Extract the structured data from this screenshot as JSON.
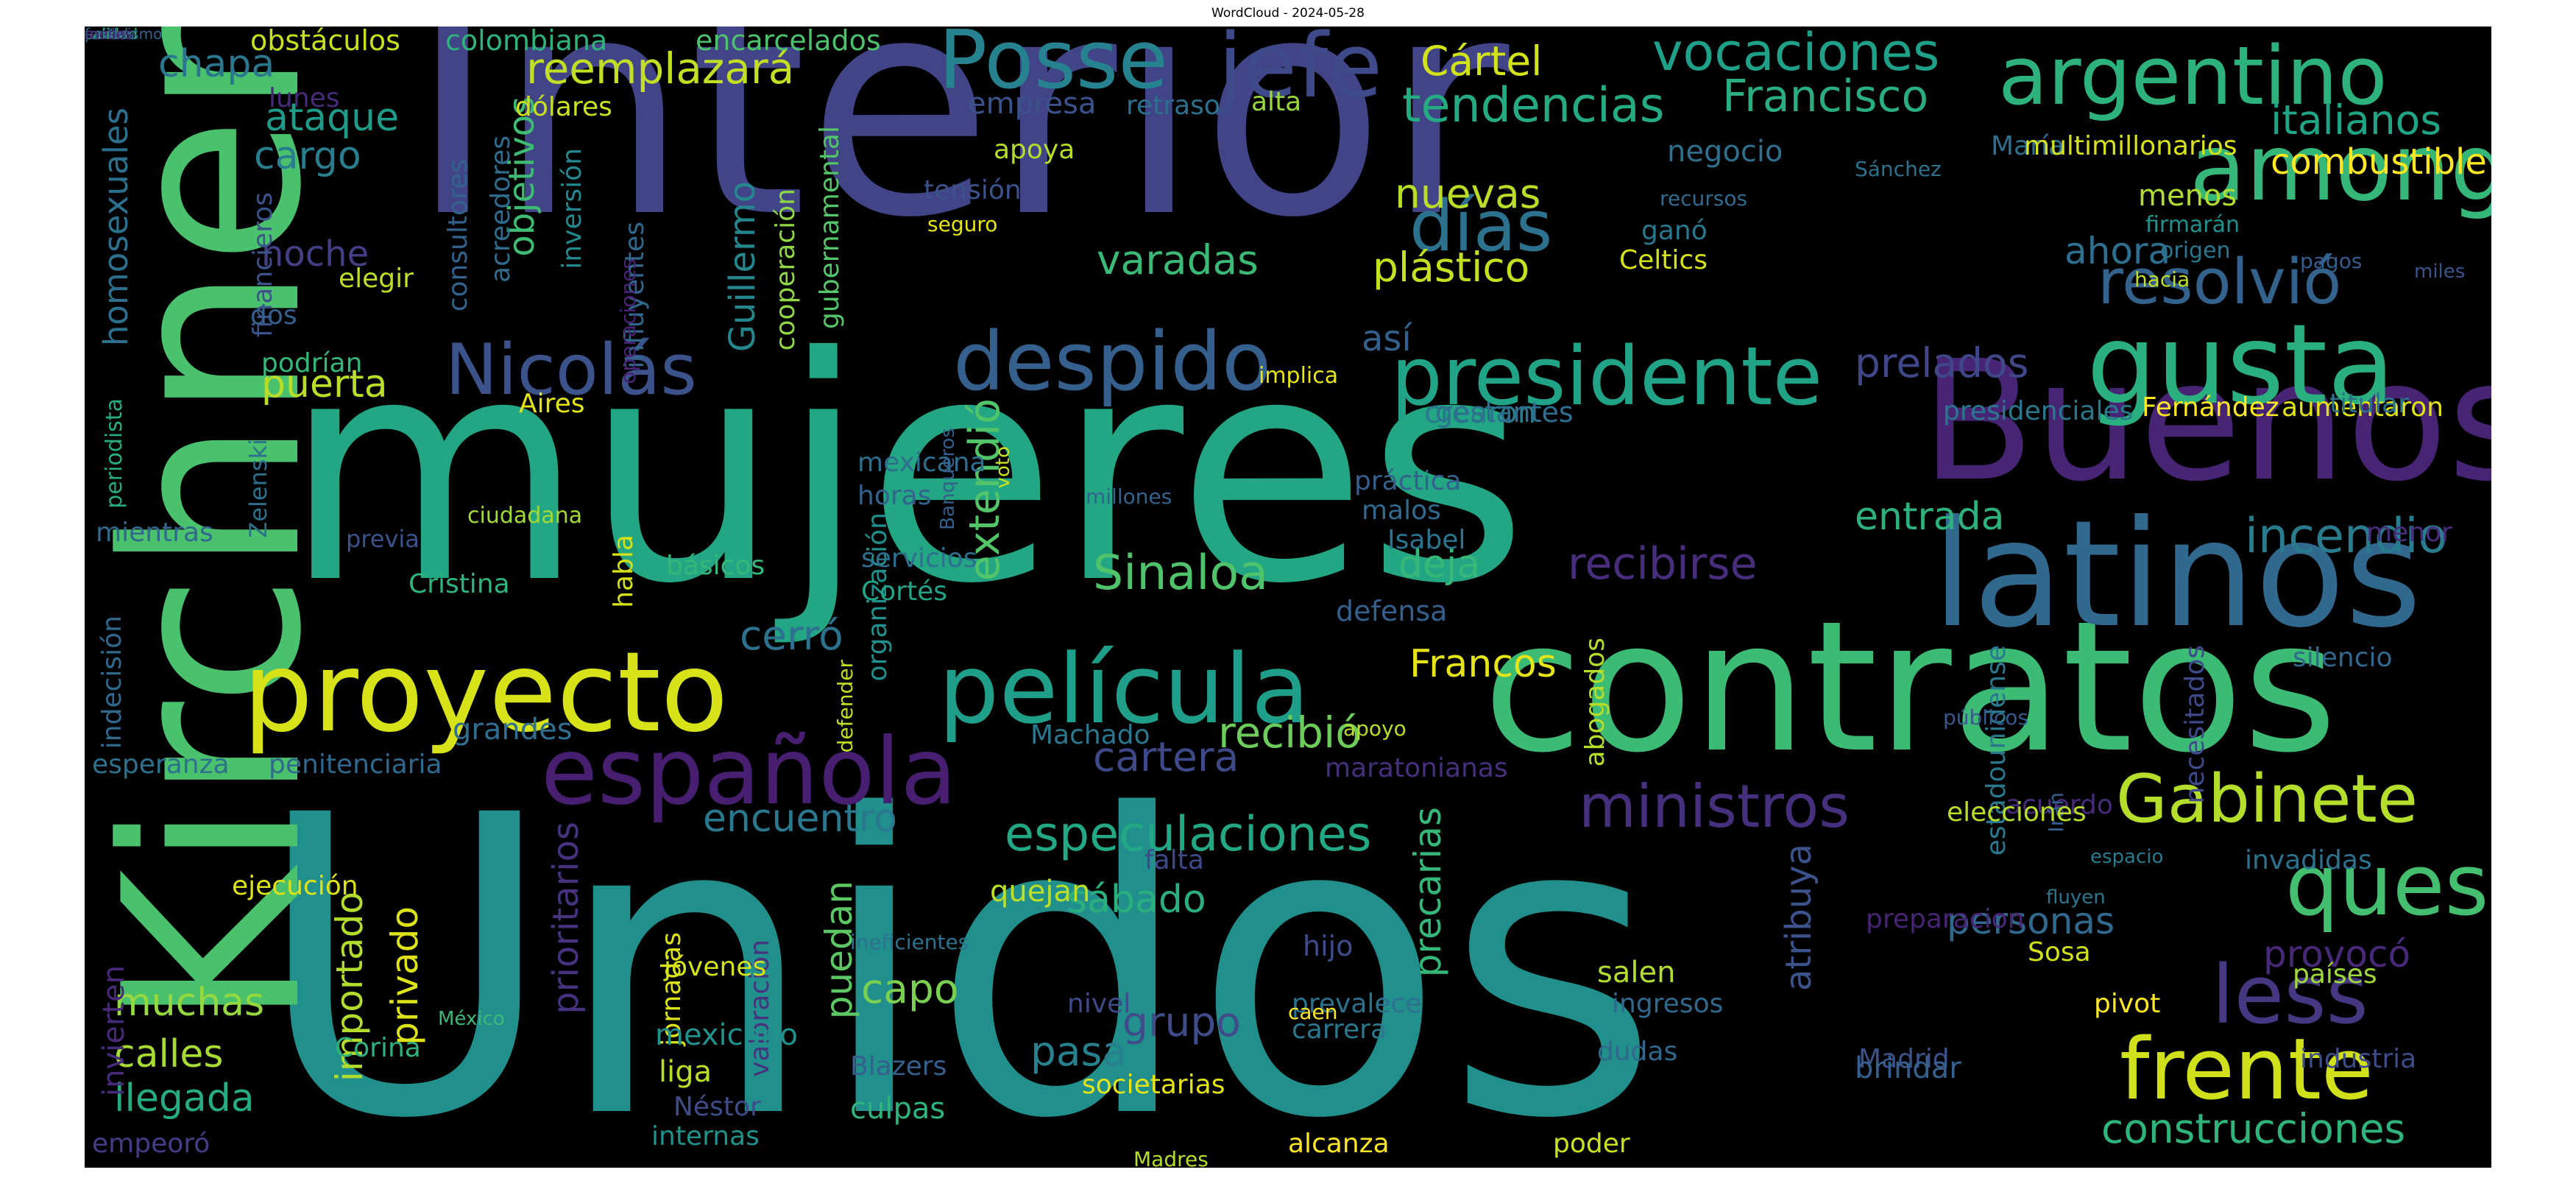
{
  "window": {
    "title": "WordCloud - 2024-05-28"
  },
  "wordcloud": {
    "background": "#000000",
    "words": [
      {
        "text": "Unidos",
        "color": "#218f8c",
        "vertical": false
      },
      {
        "text": "mujeres",
        "color": "#22a684",
        "vertical": false
      },
      {
        "text": "Interior",
        "color": "#414487",
        "vertical": false
      },
      {
        "text": "Kirchner",
        "color": "#4ac16d",
        "vertical": true
      },
      {
        "text": "contratos",
        "color": "#3cbb75",
        "vertical": false
      },
      {
        "text": "Buenos",
        "color": "#482475",
        "vertical": false
      },
      {
        "text": "latinos",
        "color": "#31688e",
        "vertical": false
      },
      {
        "text": "proyecto",
        "color": "#d8e219",
        "vertical": false
      },
      {
        "text": "película",
        "color": "#1f9e89",
        "vertical": false
      },
      {
        "text": "española",
        "color": "#481f70",
        "vertical": false
      },
      {
        "text": "despido",
        "color": "#355f8d",
        "vertical": false
      },
      {
        "text": "presidente",
        "color": "#20a386",
        "vertical": false
      },
      {
        "text": "gusta",
        "color": "#2ab07f",
        "vertical": false
      },
      {
        "text": "among",
        "color": "#35b779",
        "vertical": false
      },
      {
        "text": "argentino",
        "color": "#2db27d",
        "vertical": false
      },
      {
        "text": "jefe",
        "color": "#3e4a89",
        "vertical": false
      },
      {
        "text": "Posse",
        "color": "#26828e",
        "vertical": false
      },
      {
        "text": "queso",
        "color": "#44bf70",
        "vertical": false
      },
      {
        "text": "frente",
        "color": "#d0e11c",
        "vertical": false
      },
      {
        "text": "less",
        "color": "#453781",
        "vertical": false
      },
      {
        "text": "Gabinete",
        "color": "#b5de2b",
        "vertical": false
      },
      {
        "text": "ministros",
        "color": "#46307e",
        "vertical": false
      },
      {
        "text": "Nicolás",
        "color": "#3b528b",
        "vertical": false
      },
      {
        "text": "días",
        "color": "#2c728e",
        "vertical": false
      },
      {
        "text": "resolvió",
        "color": "#33638d",
        "vertical": false
      },
      {
        "text": "incendio",
        "color": "#297b8e",
        "vertical": false
      },
      {
        "text": "recibirse",
        "color": "#472d7b",
        "vertical": false
      },
      {
        "text": "Sinaloa",
        "color": "#4ec36b",
        "vertical": false
      },
      {
        "text": "extendió",
        "color": "#52c569",
        "vertical": true
      },
      {
        "text": "especulaciones",
        "color": "#22a884",
        "vertical": false
      },
      {
        "text": "vocaciones",
        "color": "#1fa088",
        "vertical": false
      },
      {
        "text": "tendencias",
        "color": "#25ab82",
        "vertical": false
      },
      {
        "text": "Francisco",
        "color": "#28ae80",
        "vertical": false
      },
      {
        "text": "Cártel",
        "color": "#d2e21b",
        "vertical": false
      },
      {
        "text": "reemplazará",
        "color": "#c2df23",
        "vertical": false
      },
      {
        "text": "ataque",
        "color": "#1e9c89",
        "vertical": false
      },
      {
        "text": "cargo",
        "color": "#287d8e",
        "vertical": false
      },
      {
        "text": "chapa",
        "color": "#2a768e",
        "vertical": false
      },
      {
        "text": "puerta",
        "color": "#b8de29",
        "vertical": false
      },
      {
        "text": "prelados",
        "color": "#3f4788",
        "vertical": false
      },
      {
        "text": "italianos",
        "color": "#20a486",
        "vertical": false
      },
      {
        "text": "combustible",
        "color": "#fde725",
        "vertical": false
      },
      {
        "text": "ahora",
        "color": "#2e6e8e",
        "vertical": false
      },
      {
        "text": "varadas",
        "color": "#3aba76",
        "vertical": false
      },
      {
        "text": "plástico",
        "color": "#c5e021",
        "vertical": false
      },
      {
        "text": "nuevas",
        "color": "#bade28",
        "vertical": false
      },
      {
        "text": "entrada",
        "color": "#2db27d",
        "vertical": false
      },
      {
        "text": "deja",
        "color": "#37b878",
        "vertical": false
      },
      {
        "text": "Francos",
        "color": "#e5e419",
        "vertical": false
      },
      {
        "text": "cerró",
        "color": "#2c728e",
        "vertical": false
      },
      {
        "text": "encuentro",
        "color": "#2a788e",
        "vertical": false
      },
      {
        "text": "cartera",
        "color": "#3e4989",
        "vertical": false
      },
      {
        "text": "recibió",
        "color": "#6ccd5a",
        "vertical": false
      },
      {
        "text": "sábado",
        "color": "#2ab07f",
        "vertical": false
      },
      {
        "text": "personas",
        "color": "#31688e",
        "vertical": false
      },
      {
        "text": "provocó",
        "color": "#482878",
        "vertical": false
      },
      {
        "text": "construcciones",
        "color": "#2fb47c",
        "vertical": false
      },
      {
        "text": "muchas",
        "color": "#95d840",
        "vertical": false
      },
      {
        "text": "calles",
        "color": "#a8db34",
        "vertical": false
      },
      {
        "text": "llegada",
        "color": "#25ac82",
        "vertical": false
      },
      {
        "text": "privado",
        "color": "#dde318",
        "vertical": true
      },
      {
        "text": "importado",
        "color": "#b2dd2d",
        "vertical": true
      },
      {
        "text": "capo",
        "color": "#7ad151",
        "vertical": false
      },
      {
        "text": "pasa",
        "color": "#27808e",
        "vertical": false
      },
      {
        "text": "grupo",
        "color": "#3e4c8a",
        "vertical": false
      },
      {
        "text": "puedan",
        "color": "#5cc863",
        "vertical": true
      },
      {
        "text": "precarias",
        "color": "#35b779",
        "vertical": true
      },
      {
        "text": "prioritarios",
        "color": "#46327e",
        "vertical": true
      },
      {
        "text": "atribuya",
        "color": "#3b528b",
        "vertical": true
      },
      {
        "text": "Guillermo",
        "color": "#24878e",
        "vertical": true
      },
      {
        "text": "objetivos",
        "color": "#3fbc73",
        "vertical": true
      },
      {
        "text": "homosexuales",
        "color": "#2d708e",
        "vertical": true
      },
      {
        "text": "noche",
        "color": "#423f85",
        "vertical": false
      },
      {
        "text": "así",
        "color": "#34608d",
        "vertical": false
      },
      {
        "text": "cooperación",
        "color": "#8fd744",
        "vertical": true
      },
      {
        "text": "gubernamental",
        "color": "#54c568",
        "vertical": true
      },
      {
        "text": "inversión",
        "color": "#23898e",
        "vertical": true
      },
      {
        "text": "consultores",
        "color": "#33638d",
        "vertical": true
      },
      {
        "text": "acreedores",
        "color": "#2f6c8e",
        "vertical": true
      },
      {
        "text": "dólares",
        "color": "#cae11f",
        "vertical": false
      },
      {
        "text": "obstáculos",
        "color": "#c8e020",
        "vertical": false
      },
      {
        "text": "colombiana",
        "color": "#2eb37c",
        "vertical": false
      },
      {
        "text": "encarcelados",
        "color": "#4cc26c",
        "vertical": false
      },
      {
        "text": "empresa",
        "color": "#3b528b",
        "vertical": false
      },
      {
        "text": "retraso",
        "color": "#2d708e",
        "vertical": false
      },
      {
        "text": "alta",
        "color": "#99d83d",
        "vertical": false
      },
      {
        "text": "negocio",
        "color": "#2e6f8e",
        "vertical": false
      },
      {
        "text": "recursos",
        "color": "#306a8e",
        "vertical": false
      },
      {
        "text": "ganó",
        "color": "#2a788e",
        "vertical": false
      },
      {
        "text": "Celtics",
        "color": "#d5e21a",
        "vertical": false
      },
      {
        "text": "menos",
        "color": "#b0dd2f",
        "vertical": false
      },
      {
        "text": "firmarán",
        "color": "#21918c",
        "vertical": false
      },
      {
        "text": "origen",
        "color": "#2a768e",
        "vertical": false
      },
      {
        "text": "pagos",
        "color": "#355e8d",
        "vertical": false
      },
      {
        "text": "hacia",
        "color": "#c0df25",
        "vertical": false
      },
      {
        "text": "miles",
        "color": "#3a548c",
        "vertical": false
      },
      {
        "text": "María",
        "color": "#2e6e8e",
        "vertical": false
      },
      {
        "text": "multimillonarios",
        "color": "#d8e219",
        "vertical": false
      },
      {
        "text": "Sánchez",
        "color": "#2c728e",
        "vertical": false
      },
      {
        "text": "lunes",
        "color": "#472a7a",
        "vertical": false
      },
      {
        "text": "financieros",
        "color": "#3b528b",
        "vertical": true
      },
      {
        "text": "influyentes",
        "color": "#31688e",
        "vertical": true
      },
      {
        "text": "operaciones",
        "color": "#482475",
        "vertical": true
      },
      {
        "text": "tensión",
        "color": "#3b528b",
        "vertical": false
      },
      {
        "text": "seguro",
        "color": "#e5e419",
        "vertical": false
      },
      {
        "text": "apoya",
        "color": "#b5de2b",
        "vertical": false
      },
      {
        "text": "elegir",
        "color": "#bddf26",
        "vertical": false
      },
      {
        "text": "dos",
        "color": "#355f8d",
        "vertical": false
      },
      {
        "text": "podrían",
        "color": "#35b779",
        "vertical": false
      },
      {
        "text": "periodista",
        "color": "#27ad81",
        "vertical": true
      },
      {
        "text": "Aires",
        "color": "#e2e418",
        "vertical": false
      },
      {
        "text": "crearon",
        "color": "#2a788e",
        "vertical": false
      },
      {
        "text": "gestantes",
        "color": "#2e6e8e",
        "vertical": false
      },
      {
        "text": "implica",
        "color": "#e7e419",
        "vertical": false
      },
      {
        "text": "presidenciales",
        "color": "#2a788e",
        "vertical": false
      },
      {
        "text": "Fernández",
        "color": "#fde725",
        "vertical": false
      },
      {
        "text": "aumentaron",
        "color": "#e2e418",
        "vertical": false
      },
      {
        "text": "titular",
        "color": "#2c728e",
        "vertical": false
      },
      {
        "text": "Zelenski",
        "color": "#2d708e",
        "vertical": true
      },
      {
        "text": "mientras",
        "color": "#31688e",
        "vertical": false
      },
      {
        "text": "mexicana",
        "color": "#2e6e8e",
        "vertical": false
      },
      {
        "text": "horas",
        "color": "#33638d",
        "vertical": false
      },
      {
        "text": "organización",
        "color": "#21908d",
        "vertical": true
      },
      {
        "text": "servicios",
        "color": "#2e6e8e",
        "vertical": false
      },
      {
        "text": "Cortés",
        "color": "#20a386",
        "vertical": false
      },
      {
        "text": "millones",
        "color": "#33638d",
        "vertical": false
      },
      {
        "text": "práctica",
        "color": "#355f8d",
        "vertical": false
      },
      {
        "text": "malos",
        "color": "#306a8e",
        "vertical": false
      },
      {
        "text": "Isabel",
        "color": "#2b748e",
        "vertical": false
      },
      {
        "text": "defensa",
        "color": "#355f8d",
        "vertical": false
      },
      {
        "text": "menor",
        "color": "#472d7b",
        "vertical": false
      },
      {
        "text": "previa",
        "color": "#3b528b",
        "vertical": false
      },
      {
        "text": "Cristina",
        "color": "#2fb47c",
        "vertical": false
      },
      {
        "text": "ciudadana",
        "color": "#a2da37",
        "vertical": false
      },
      {
        "text": "habla",
        "color": "#d5e21a",
        "vertical": true
      },
      {
        "text": "básicos",
        "color": "#35b779",
        "vertical": false
      },
      {
        "text": "Banqueros",
        "color": "#355f8d",
        "vertical": true
      },
      {
        "text": "voto",
        "color": "#c8e020",
        "vertical": true
      },
      {
        "text": "indecisión",
        "color": "#31688e",
        "vertical": true
      },
      {
        "text": "defender",
        "color": "#c2df23",
        "vertical": true
      },
      {
        "text": "abogados",
        "color": "#b5de2b",
        "vertical": true
      },
      {
        "text": "estadounidense",
        "color": "#2a788e",
        "vertical": true
      },
      {
        "text": "necesitados",
        "color": "#3e4a89",
        "vertical": true
      },
      {
        "text": "silencio",
        "color": "#31688e",
        "vertical": false
      },
      {
        "text": "grandes",
        "color": "#2e6e8e",
        "vertical": false
      },
      {
        "text": "Machado",
        "color": "#2a788e",
        "vertical": false
      },
      {
        "text": "apoyo",
        "color": "#bade28",
        "vertical": false
      },
      {
        "text": "públicos",
        "color": "#38598c",
        "vertical": false
      },
      {
        "text": "esperanza",
        "color": "#2c728e",
        "vertical": false
      },
      {
        "text": "penitenciaria",
        "color": "#31688e",
        "vertical": false
      },
      {
        "text": "maratonianas",
        "color": "#46307e",
        "vertical": false
      },
      {
        "text": "acuerdo",
        "color": "#472a7a",
        "vertical": false
      },
      {
        "text": "Irán",
        "color": "#35608d",
        "vertical": true
      },
      {
        "text": "espacio",
        "color": "#297a8e",
        "vertical": false
      },
      {
        "text": "invadidas",
        "color": "#2c728e",
        "vertical": false
      },
      {
        "text": "falta",
        "color": "#3e4989",
        "vertical": false
      },
      {
        "text": "quejan",
        "color": "#bddf26",
        "vertical": false
      },
      {
        "text": "ejecución",
        "color": "#dde318",
        "vertical": false
      },
      {
        "text": "preparacion",
        "color": "#482475",
        "vertical": false
      },
      {
        "text": "ineficientes",
        "color": "#2c728e",
        "vertical": false
      },
      {
        "text": "elecciones",
        "color": "#b8de29",
        "vertical": false
      },
      {
        "text": "fluyen",
        "color": "#2a768e",
        "vertical": false
      },
      {
        "text": "jornadas",
        "color": "#dde318",
        "vertical": true
      },
      {
        "text": "valoración",
        "color": "#46327e",
        "vertical": true
      },
      {
        "text": "hijo",
        "color": "#3e4c8a",
        "vertical": false
      },
      {
        "text": "Sosa",
        "color": "#d0e11c",
        "vertical": false
      },
      {
        "text": "invierten",
        "color": "#472a7a",
        "vertical": true
      },
      {
        "text": "jóvenes",
        "color": "#d2e21b",
        "vertical": false
      },
      {
        "text": "salen",
        "color": "#b0dd2f",
        "vertical": false
      },
      {
        "text": "países",
        "color": "#a0da39",
        "vertical": false
      },
      {
        "text": "nivel",
        "color": "#3e4a89",
        "vertical": false
      },
      {
        "text": "prevalece",
        "color": "#2c728e",
        "vertical": false
      },
      {
        "text": "ingresos",
        "color": "#31688e",
        "vertical": false
      },
      {
        "text": "pivot",
        "color": "#fde725",
        "vertical": false
      },
      {
        "text": "México",
        "color": "#3aba76",
        "vertical": false
      },
      {
        "text": "caen",
        "color": "#fde725",
        "vertical": false
      },
      {
        "text": "mexicano",
        "color": "#21918c",
        "vertical": false
      },
      {
        "text": "Blazers",
        "color": "#355f8d",
        "vertical": false
      },
      {
        "text": "carrera",
        "color": "#2a788e",
        "vertical": false
      },
      {
        "text": "dudas",
        "color": "#31688e",
        "vertical": false
      },
      {
        "text": "Madrid",
        "color": "#3b528b",
        "vertical": false
      },
      {
        "text": "industria",
        "color": "#3e4c8a",
        "vertical": false
      },
      {
        "text": "Corina",
        "color": "#2db27d",
        "vertical": false
      },
      {
        "text": "liga",
        "color": "#b8de29",
        "vertical": false
      },
      {
        "text": "societarias",
        "color": "#e5e419",
        "vertical": false
      },
      {
        "text": "brindar",
        "color": "#355f8d",
        "vertical": false
      },
      {
        "text": "culpas",
        "color": "#2fb47c",
        "vertical": false
      },
      {
        "text": "Néstor",
        "color": "#3e4c8a",
        "vertical": false
      },
      {
        "text": "internas",
        "color": "#21918c",
        "vertical": false
      },
      {
        "text": "alcanza",
        "color": "#fde725",
        "vertical": false
      },
      {
        "text": "poder",
        "color": "#cae11f",
        "vertical": false
      },
      {
        "text": "empeoró",
        "color": "#433e85",
        "vertical": false
      },
      {
        "text": "Madres",
        "color": "#b5de2b",
        "vertical": false
      },
      {
        "text": "partido",
        "color": "#2a788e",
        "vertical": false
      },
      {
        "text": "saber",
        "color": "#482878",
        "vertical": false
      },
      {
        "text": "calidad",
        "color": "#34b679",
        "vertical": false
      },
      {
        "text": "fondos",
        "color": "#2e6e8e",
        "vertical": false
      },
      {
        "text": "anillos",
        "color": "#3b528b",
        "vertical": false
      },
      {
        "text": "peronismo",
        "color": "#33638d",
        "vertical": false
      },
      {
        "text": "meses",
        "color": "#482475",
        "vertical": false
      }
    ]
  }
}
